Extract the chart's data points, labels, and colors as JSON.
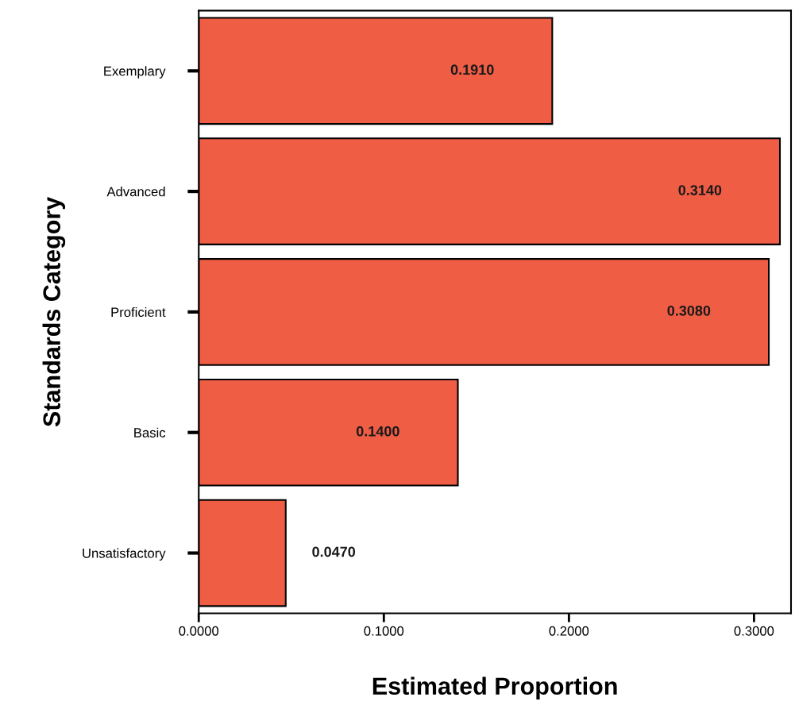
{
  "chart_data": {
    "type": "bar",
    "orientation": "horizontal",
    "categories": [
      "Exemplary",
      "Advanced",
      "Proficient",
      "Basic",
      "Unsatisfactory"
    ],
    "values": [
      0.191,
      0.314,
      0.308,
      0.14,
      0.047
    ],
    "value_labels": [
      "0.1910",
      "0.3140",
      "0.3080",
      "0.1400",
      "0.0470"
    ],
    "color": "#f05d45",
    "xlabel": "Estimated Proportion",
    "ylabel": "Standards Category",
    "xlim": [
      0,
      0.32
    ],
    "xticks": [
      {
        "value": 0,
        "label": "0.0000"
      },
      {
        "value": 0.1,
        "label": "0.1000"
      },
      {
        "value": 0.2,
        "label": "0.2000"
      },
      {
        "value": 0.3,
        "label": "0.3000"
      }
    ],
    "grid": false,
    "legend": false
  }
}
